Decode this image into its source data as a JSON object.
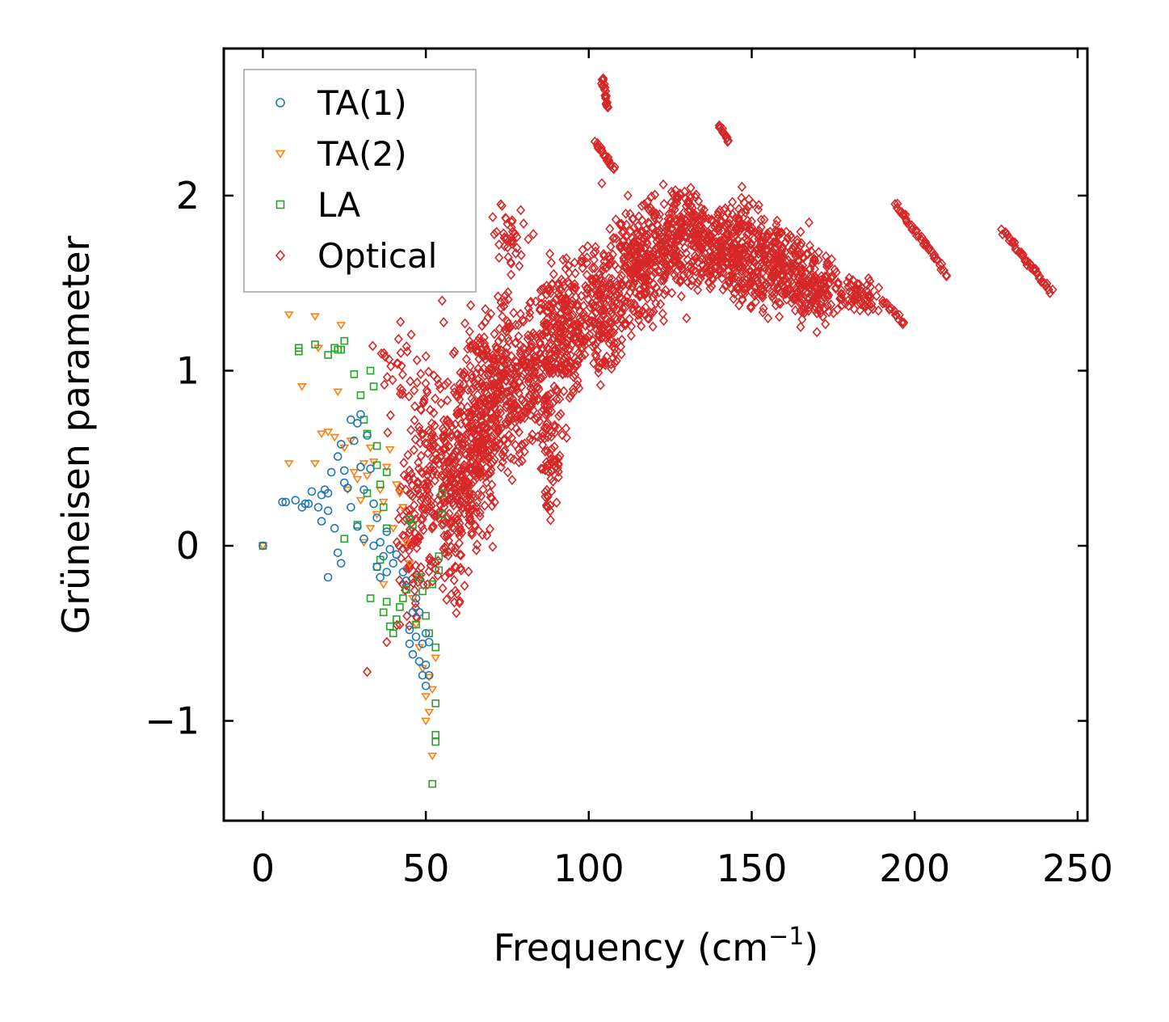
{
  "chart_data": {
    "type": "scatter",
    "title": "",
    "xlabel_main": "Frequency (cm",
    "xlabel_sup": "−1",
    "xlabel_tail": ")",
    "ylabel": "Grüneisen parameter",
    "xlim": [
      -12,
      253
    ],
    "ylim": [
      -1.57,
      2.84
    ],
    "xticks": [
      0,
      50,
      100,
      150,
      200,
      250
    ],
    "xtick_labels": [
      "0",
      "50",
      "100",
      "150",
      "200",
      "250"
    ],
    "yticks": [
      -1,
      0,
      1,
      2
    ],
    "ytick_labels": [
      "−1",
      "0",
      "1",
      "2"
    ],
    "legend_position": "top-left",
    "series": [
      {
        "name": "TA(1)",
        "marker": "circle",
        "color": "#1f77b4",
        "points": [
          [
            0,
            0
          ],
          [
            6,
            0.25
          ],
          [
            7,
            0.25
          ],
          [
            10,
            0.26
          ],
          [
            12,
            0.22
          ],
          [
            13,
            0.24
          ],
          [
            14,
            0.24
          ],
          [
            15,
            0.31
          ],
          [
            17,
            0.22
          ],
          [
            18,
            0.29
          ],
          [
            18,
            0.14
          ],
          [
            19,
            0.32
          ],
          [
            20,
            0.3
          ],
          [
            20,
            0.2
          ],
          [
            20,
            -0.18
          ],
          [
            21,
            0.42
          ],
          [
            22,
            0.1
          ],
          [
            23,
            0.51
          ],
          [
            23,
            -0.04
          ],
          [
            24,
            0.58
          ],
          [
            24,
            -0.1
          ],
          [
            25,
            0.43
          ],
          [
            25,
            0.36
          ],
          [
            26,
            0.33
          ],
          [
            27,
            0.22
          ],
          [
            27,
            0.72
          ],
          [
            28,
            0.6
          ],
          [
            29,
            0.7
          ],
          [
            29,
            0.11
          ],
          [
            30,
            0.75
          ],
          [
            30,
            0.45
          ],
          [
            31,
            0.32
          ],
          [
            31,
            0.04
          ],
          [
            32,
            0.63
          ],
          [
            33,
            0.44
          ],
          [
            34,
            0.24
          ],
          [
            34,
            0.0
          ],
          [
            35,
            0.16
          ],
          [
            35,
            -0.12
          ],
          [
            36,
            0.02
          ],
          [
            36,
            -0.18
          ],
          [
            37,
            -0.06
          ],
          [
            38,
            0.08
          ],
          [
            38,
            -0.15
          ],
          [
            39,
            -0.02
          ],
          [
            40,
            -0.1
          ],
          [
            41,
            -0.05
          ],
          [
            43,
            -0.15
          ],
          [
            44,
            -0.2
          ],
          [
            45,
            -0.48
          ],
          [
            45,
            -0.56
          ],
          [
            46,
            -0.38
          ],
          [
            46,
            -0.62
          ],
          [
            47,
            -0.3
          ],
          [
            47,
            -0.52
          ],
          [
            48,
            -0.66
          ],
          [
            48,
            -0.38
          ],
          [
            49,
            -0.56
          ],
          [
            49,
            -0.74
          ],
          [
            50,
            -0.5
          ],
          [
            50,
            -0.8
          ],
          [
            50,
            -0.68
          ],
          [
            51,
            -0.55
          ],
          [
            51,
            -0.74
          ]
        ]
      },
      {
        "name": "TA(2)",
        "marker": "triangle-down",
        "color": "#ff7f0e",
        "points": [
          [
            0,
            0
          ],
          [
            8,
            1.32
          ],
          [
            8,
            0.47
          ],
          [
            12,
            0.91
          ],
          [
            16,
            1.31
          ],
          [
            16,
            0.47
          ],
          [
            17,
            1.13
          ],
          [
            18,
            0.64
          ],
          [
            20,
            0.65
          ],
          [
            22,
            0.62
          ],
          [
            23,
            0.88
          ],
          [
            24,
            1.26
          ],
          [
            25,
            0.56
          ],
          [
            26,
            0.32
          ],
          [
            27,
            0.6
          ],
          [
            28,
            0.42
          ],
          [
            29,
            0.38
          ],
          [
            30,
            0.26
          ],
          [
            31,
            0.47
          ],
          [
            31,
            0.02
          ],
          [
            32,
            0.4
          ],
          [
            33,
            0.56
          ],
          [
            33,
            0.1
          ],
          [
            34,
            0.48
          ],
          [
            35,
            0.18
          ],
          [
            36,
            0.32
          ],
          [
            37,
            0.25
          ],
          [
            37,
            -0.22
          ],
          [
            38,
            0.45
          ],
          [
            39,
            0.55
          ],
          [
            40,
            0.1
          ],
          [
            41,
            0.35
          ],
          [
            42,
            0.3
          ],
          [
            43,
            0.22
          ],
          [
            44,
            0.02
          ],
          [
            45,
            -0.1
          ],
          [
            46,
            -0.3
          ],
          [
            47,
            -0.45
          ],
          [
            48,
            -0.58
          ],
          [
            49,
            -0.7
          ],
          [
            50,
            -0.86
          ],
          [
            50,
            -1.0
          ],
          [
            51,
            -0.75
          ],
          [
            51,
            -0.95
          ],
          [
            52,
            -1.2
          ],
          [
            52,
            -0.82
          ],
          [
            53,
            -0.64
          ]
        ]
      },
      {
        "name": "LA",
        "marker": "square",
        "color": "#2ca02c",
        "points": [
          [
            0,
            0
          ],
          [
            11,
            1.13
          ],
          [
            11,
            1.11
          ],
          [
            16,
            1.15
          ],
          [
            20,
            1.09
          ],
          [
            22,
            1.13
          ],
          [
            23,
            1.12
          ],
          [
            24,
            1.12
          ],
          [
            25,
            1.17
          ],
          [
            28,
            0.98
          ],
          [
            30,
            0.86
          ],
          [
            31,
            0.72
          ],
          [
            32,
            0.64
          ],
          [
            33,
            1.0
          ],
          [
            34,
            0.91
          ],
          [
            35,
            0.57
          ],
          [
            35,
            0.46
          ],
          [
            36,
            0.35
          ],
          [
            37,
            0.22
          ],
          [
            38,
            0.42
          ],
          [
            38,
            0.1
          ],
          [
            25,
            0.04
          ],
          [
            29,
            0.12
          ],
          [
            32,
            0.3
          ],
          [
            33,
            -0.3
          ],
          [
            35,
            -0.12
          ],
          [
            36,
            -0.08
          ],
          [
            37,
            -0.38
          ],
          [
            38,
            -0.32
          ],
          [
            39,
            -0.46
          ],
          [
            40,
            -0.5
          ],
          [
            41,
            -0.42
          ],
          [
            42,
            -0.35
          ],
          [
            43,
            -0.3
          ],
          [
            44,
            -0.25
          ],
          [
            45,
            0.15
          ],
          [
            46,
            0.12
          ],
          [
            47,
            -0.45
          ],
          [
            48,
            -0.18
          ],
          [
            49,
            -0.26
          ],
          [
            50,
            -0.4
          ],
          [
            51,
            -0.5
          ],
          [
            52,
            -0.22
          ],
          [
            53,
            -0.58
          ],
          [
            53,
            -0.9
          ],
          [
            53,
            -1.08
          ],
          [
            53,
            -1.12
          ],
          [
            52,
            -1.36
          ],
          [
            54,
            -0.06
          ],
          [
            54,
            -0.14
          ],
          [
            55,
            0.3
          ],
          [
            55,
            0.18
          ]
        ]
      },
      {
        "name": "Optical",
        "marker": "diamond",
        "color": "#d62728",
        "points": [],
        "clusters": [
          {
            "x": [
              40,
              50
            ],
            "y": [
              -0.6,
              0.6
            ],
            "n": 70
          },
          {
            "x": [
              45,
              58
            ],
            "y": [
              -0.3,
              1.0
            ],
            "n": 130
          },
          {
            "x": [
              52,
              66
            ],
            "y": [
              -0.4,
              1.1
            ],
            "n": 190
          },
          {
            "x": [
              58,
              72
            ],
            "y": [
              -0.1,
              1.3
            ],
            "n": 190
          },
          {
            "x": [
              62,
              78
            ],
            "y": [
              0.2,
              1.4
            ],
            "n": 180
          },
          {
            "x": [
              70,
              86
            ],
            "y": [
              0.4,
              1.5
            ],
            "n": 170
          },
          {
            "x": [
              80,
              95
            ],
            "y": [
              0.5,
              1.6
            ],
            "n": 150
          },
          {
            "x": [
              85,
              100
            ],
            "y": [
              0.8,
              1.7
            ],
            "n": 160
          },
          {
            "x": [
              95,
              112
            ],
            "y": [
              0.9,
              1.8
            ],
            "n": 200
          },
          {
            "x": [
              105,
              125
            ],
            "y": [
              1.2,
              2.0
            ],
            "n": 240
          },
          {
            "x": [
              115,
              140
            ],
            "y": [
              1.4,
              2.1
            ],
            "n": 240
          },
          {
            "x": [
              130,
              150
            ],
            "y": [
              1.4,
              2.0
            ],
            "n": 180
          },
          {
            "x": [
              140,
              160
            ],
            "y": [
              1.3,
              2.0
            ],
            "n": 180
          },
          {
            "x": [
              150,
              170
            ],
            "y": [
              1.3,
              1.9
            ],
            "n": 160
          },
          {
            "x": [
              160,
              180
            ],
            "y": [
              1.25,
              1.7
            ],
            "n": 140
          },
          {
            "x": [
              175,
              190
            ],
            "y": [
              1.3,
              1.55
            ],
            "n": 60
          },
          {
            "x": [
              85,
              92
            ],
            "y": [
              0.1,
              0.8
            ],
            "n": 50
          },
          {
            "x": [
              30,
              60
            ],
            "y": [
              0.5,
              1.35
            ],
            "n": 45
          },
          {
            "x": [
              70,
              82
            ],
            "y": [
              1.5,
              2.0
            ],
            "n": 35
          }
        ],
        "curves": [
          {
            "x": [
              104,
              106
            ],
            "y": [
              2.5,
              2.67
            ],
            "n": 25
          },
          {
            "x": [
              102,
              108
            ],
            "y": [
              2.15,
              2.3
            ],
            "n": 20
          },
          {
            "x": [
              140,
              143
            ],
            "y": [
              2.32,
              2.4
            ],
            "n": 15
          },
          {
            "x": [
              194,
              210
            ],
            "y": [
              1.55,
              1.95
            ],
            "n": 40
          },
          {
            "x": [
              227,
              242
            ],
            "y": [
              1.45,
              1.8
            ],
            "n": 45
          },
          {
            "x": [
              190,
              197
            ],
            "y": [
              1.27,
              1.4
            ],
            "n": 15
          }
        ],
        "outliers": [
          [
            32,
            -0.72
          ],
          [
            38,
            -0.55
          ],
          [
            42,
            -0.45
          ],
          [
            55,
            1.4
          ],
          [
            62,
            1.27
          ],
          [
            71,
            1.78
          ],
          [
            73,
            1.95
          ],
          [
            80,
            1.84
          ],
          [
            83,
            1.78
          ],
          [
            97,
            0.9
          ],
          [
            113,
            1.2
          ],
          [
            122,
            1.38
          ],
          [
            130,
            1.3
          ],
          [
            128,
            1.6
          ],
          [
            131,
            2.0
          ],
          [
            138,
            1.52
          ],
          [
            147,
            2.05
          ],
          [
            155,
            1.3
          ],
          [
            165,
            1.25
          ],
          [
            170,
            1.22
          ],
          [
            104,
            2.07
          ],
          [
            112,
            2.0
          ],
          [
            117,
            1.95
          ],
          [
            150,
            1.8
          ]
        ]
      }
    ]
  }
}
